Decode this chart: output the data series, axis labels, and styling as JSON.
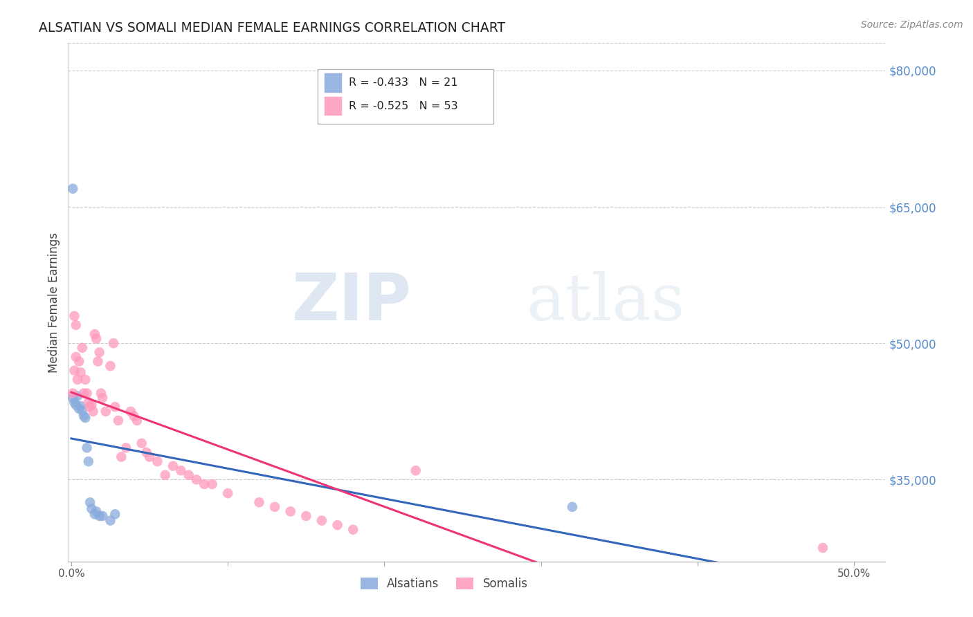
{
  "title": "ALSATIAN VS SOMALI MEDIAN FEMALE EARNINGS CORRELATION CHART",
  "source": "Source: ZipAtlas.com",
  "ylabel": "Median Female Earnings",
  "right_ytick_labels": [
    "$80,000",
    "$65,000",
    "$50,000",
    "$35,000"
  ],
  "right_ytick_values": [
    80000,
    65000,
    50000,
    35000
  ],
  "ylim_min": 26000,
  "ylim_max": 83000,
  "xlim_min": -0.002,
  "xlim_max": 0.52,
  "legend_label_alsatian": "Alsatians",
  "legend_label_somali": "Somalis",
  "alsatian_color": "#88AADD",
  "somali_color": "#FF99BB",
  "trend_alsatian_color": "#3366BB",
  "trend_somali_color": "#EE3377",
  "watermark_zip": "ZIP",
  "watermark_atlas": "atlas",
  "alsatian_x": [
    0.001,
    0.002,
    0.003,
    0.004,
    0.005,
    0.006,
    0.007,
    0.008,
    0.009,
    0.01,
    0.011,
    0.012,
    0.013,
    0.015,
    0.016,
    0.018,
    0.02,
    0.025,
    0.028,
    0.32,
    0.001
  ],
  "alsatian_y": [
    44000,
    43500,
    43200,
    44200,
    42800,
    43100,
    42600,
    42000,
    41800,
    38500,
    37000,
    32500,
    31800,
    31200,
    31500,
    31000,
    31000,
    30500,
    31200,
    32000,
    67000
  ],
  "somali_x": [
    0.001,
    0.002,
    0.003,
    0.004,
    0.005,
    0.006,
    0.007,
    0.008,
    0.009,
    0.01,
    0.011,
    0.012,
    0.013,
    0.014,
    0.015,
    0.016,
    0.017,
    0.018,
    0.019,
    0.02,
    0.022,
    0.025,
    0.027,
    0.028,
    0.03,
    0.032,
    0.035,
    0.038,
    0.04,
    0.042,
    0.045,
    0.048,
    0.05,
    0.055,
    0.06,
    0.065,
    0.07,
    0.075,
    0.08,
    0.085,
    0.09,
    0.1,
    0.12,
    0.13,
    0.14,
    0.15,
    0.16,
    0.17,
    0.18,
    0.22,
    0.48,
    0.002,
    0.003
  ],
  "somali_y": [
    44500,
    47000,
    48500,
    46000,
    48000,
    46800,
    49500,
    44500,
    46000,
    44500,
    43500,
    43000,
    43200,
    42500,
    51000,
    50500,
    48000,
    49000,
    44500,
    44000,
    42500,
    47500,
    50000,
    43000,
    41500,
    37500,
    38500,
    42500,
    42000,
    41500,
    39000,
    38000,
    37500,
    37000,
    35500,
    36500,
    36000,
    35500,
    35000,
    34500,
    34500,
    33500,
    32500,
    32000,
    31500,
    31000,
    30500,
    30000,
    29500,
    36000,
    27500,
    53000,
    52000
  ]
}
